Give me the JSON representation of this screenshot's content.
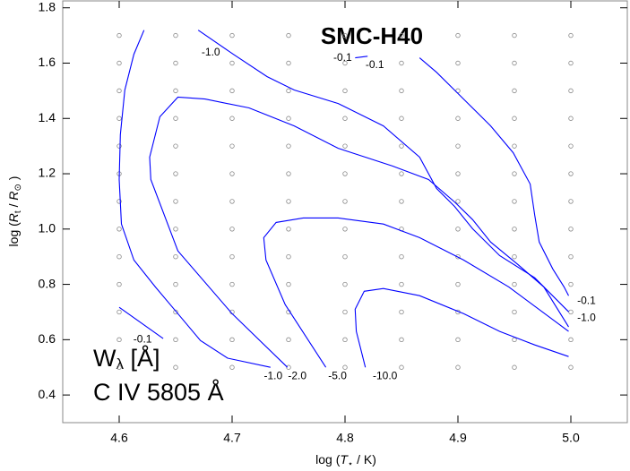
{
  "chart_data": {
    "type": "contour",
    "title": "SMC-H40",
    "xlabel": [
      "log (",
      "T",
      "⋆",
      " / K)"
    ],
    "ylabel": [
      "log (",
      "R",
      "t",
      " / ",
      "R",
      "⊙",
      " )"
    ],
    "annotation": [
      [
        "W",
        "λ",
        " [Å]"
      ],
      "C IV 5805 Å"
    ],
    "xlim": [
      4.55,
      5.05
    ],
    "xticks": [
      4.6,
      4.7,
      4.8,
      4.9,
      {
        "value": 5.0,
        "label": "5.0"
      }
    ],
    "ylim": [
      0.3,
      1.825
    ],
    "yticks": [
      0.4,
      0.6,
      0.8,
      {
        "value": 1.0,
        "label": "1.0"
      },
      1.2,
      1.4,
      1.6,
      1.8
    ],
    "grid_x": [
      4.6,
      4.65,
      4.7,
      4.75,
      4.8,
      4.85,
      4.9,
      4.95,
      5.0
    ],
    "grid_y": [
      0.5,
      0.6,
      0.7,
      0.8,
      0.9,
      1.0,
      1.1,
      1.2,
      1.3,
      1.4,
      1.5,
      1.6,
      1.7
    ],
    "series": [
      {
        "label": "-0.1",
        "color": "#0000ff",
        "x": [
          4.809,
          4.82,
          null,
          4.866,
          4.881,
          4.905,
          4.929,
          4.949,
          4.964,
          4.968,
          4.972,
          4.984,
          4.994,
          4.998
        ],
        "y": [
          1.619,
          1.625,
          null,
          1.619,
          1.567,
          1.47,
          1.373,
          1.276,
          1.163,
          1.05,
          0.953,
          0.856,
          0.791,
          0.759
        ]
      },
      {
        "label": "-1.0",
        "color": "#0000ff",
        "x": [
          4.67,
          4.701,
          4.731,
          4.755,
          4.794,
          4.834,
          4.866,
          4.881,
          4.897,
          4.913,
          4.937,
          4.968,
          4.998
        ],
        "y": [
          1.719,
          1.632,
          1.551,
          1.503,
          1.454,
          1.373,
          1.26,
          1.147,
          1.082,
          1.001,
          0.904,
          0.824,
          0.701
        ]
      },
      {
        "label": "-1.0",
        "color": "#0000ff",
        "x": [
          4.622,
          4.613,
          4.605,
          4.601,
          4.6,
          4.602,
          4.613,
          4.632,
          4.652,
          4.672,
          4.696,
          4.734
        ],
        "y": [
          1.719,
          1.632,
          1.503,
          1.341,
          1.179,
          1.018,
          0.888,
          0.791,
          0.694,
          0.597,
          0.533,
          0.5
        ]
      },
      {
        "label": "-2.0",
        "color": "#0000ff",
        "x": [
          4.749,
          4.7,
          4.652,
          4.628,
          4.627,
          4.636,
          4.652,
          4.676,
          4.715,
          4.755,
          4.794,
          4.842,
          4.874,
          4.897,
          4.913,
          4.929,
          4.953,
          4.976,
          4.998
        ],
        "y": [
          0.5,
          0.694,
          0.921,
          1.179,
          1.26,
          1.406,
          1.477,
          1.47,
          1.438,
          1.373,
          1.292,
          1.228,
          1.179,
          1.098,
          1.034,
          0.953,
          0.872,
          0.791,
          0.646
        ]
      },
      {
        "label": "-5.0",
        "color": "#0000ff",
        "x": [
          4.783,
          4.747,
          4.73,
          4.728,
          4.739,
          4.763,
          4.794,
          4.834,
          4.866,
          4.905,
          4.945,
          4.998
        ],
        "y": [
          0.5,
          0.727,
          0.888,
          0.969,
          1.024,
          1.04,
          1.04,
          1.018,
          0.969,
          0.888,
          0.791,
          0.63
        ]
      },
      {
        "label": "-10.0",
        "color": "#0000ff",
        "x": [
          4.818,
          4.81,
          4.809,
          4.817,
          4.834,
          4.866,
          4.905,
          4.937,
          4.968,
          4.998
        ],
        "y": [
          0.5,
          0.63,
          0.71,
          0.775,
          0.785,
          0.759,
          0.694,
          0.63,
          0.581,
          0.539
        ]
      },
      {
        "label": "-0.1",
        "color": "#0000ff",
        "x": [
          4.6,
          4.639
        ],
        "y": [
          0.717,
          0.604
        ]
      }
    ]
  }
}
